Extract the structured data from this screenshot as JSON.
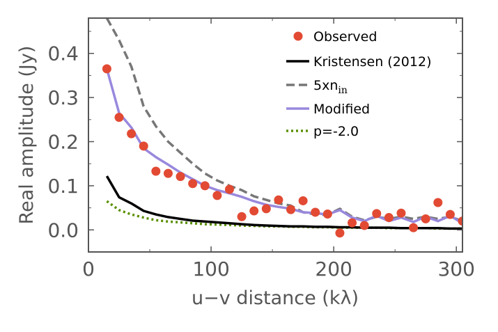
{
  "chart_data": {
    "type": "line",
    "xlabel": "u−v distance (kλ)",
    "ylabel": "Real amplitude (Jy)",
    "xlim": [
      0,
      305
    ],
    "ylim": [
      -0.05,
      0.48
    ],
    "xticks": [
      0,
      100,
      200,
      300
    ],
    "yticks": [
      0.0,
      0.1,
      0.2,
      0.3,
      0.4
    ],
    "xtick_labels": [
      "0",
      "100",
      "200",
      "300"
    ],
    "ytick_labels": [
      "0.0",
      "0.1",
      "0.2",
      "0.3",
      "0.4"
    ],
    "legend_position": "top-right",
    "grid": false,
    "series": [
      {
        "name": "Observed",
        "style": "points",
        "color": "#e24a33",
        "x": [
          15,
          25,
          35,
          45,
          55,
          65,
          75,
          85,
          95,
          105,
          115,
          125,
          135,
          145,
          155,
          165,
          175,
          185,
          195,
          205,
          215,
          225,
          235,
          245,
          255,
          265,
          275,
          285,
          295,
          305
        ],
        "y": [
          0.365,
          0.255,
          0.218,
          0.19,
          0.133,
          0.128,
          0.121,
          0.105,
          0.1,
          0.078,
          0.092,
          0.03,
          0.043,
          0.048,
          0.068,
          0.046,
          0.066,
          0.04,
          0.036,
          -0.007,
          0.016,
          0.01,
          0.037,
          0.028,
          0.038,
          0.005,
          0.025,
          0.062,
          0.035,
          0.02
        ]
      },
      {
        "name": "Kristensen (2012)",
        "style": "solid",
        "color": "#000000",
        "x": [
          15,
          25,
          35,
          45,
          55,
          65,
          75,
          85,
          95,
          105,
          115,
          125,
          135,
          145,
          155,
          165,
          175,
          185,
          195,
          205,
          215,
          225,
          235,
          245,
          255,
          265,
          275,
          285,
          295,
          305
        ],
        "y": [
          0.122,
          0.074,
          0.06,
          0.043,
          0.035,
          0.029,
          0.025,
          0.021,
          0.019,
          0.017,
          0.015,
          0.013,
          0.011,
          0.01,
          0.009,
          0.008,
          0.008,
          0.007,
          0.007,
          0.006,
          0.006,
          0.005,
          0.005,
          0.005,
          0.004,
          0.004,
          0.004,
          0.004,
          0.003,
          0.003
        ]
      },
      {
        "name": "5xn",
        "name_subscript": "in",
        "style": "dashed",
        "color": "#777777",
        "x": [
          15,
          25,
          35,
          45,
          55,
          65,
          75,
          85,
          95,
          105,
          115,
          125,
          135,
          145,
          155,
          165,
          175,
          185,
          195,
          205,
          215,
          225,
          235,
          245,
          255,
          265,
          275,
          285,
          295,
          305
        ],
        "y": [
          0.48,
          0.43,
          0.37,
          0.28,
          0.235,
          0.2,
          0.175,
          0.15,
          0.128,
          0.112,
          0.1,
          0.09,
          0.076,
          0.068,
          0.06,
          0.055,
          0.04,
          0.035,
          0.034,
          0.048,
          0.03,
          0.022,
          0.03,
          0.025,
          0.03,
          0.025,
          0.03,
          0.025,
          0.03,
          0.02
        ]
      },
      {
        "name": "Modified",
        "style": "solid",
        "color": "#9988dd",
        "x": [
          15,
          25,
          35,
          45,
          55,
          65,
          75,
          85,
          95,
          105,
          115,
          125,
          135,
          145,
          155,
          165,
          175,
          185,
          195,
          205,
          215,
          225,
          235,
          245,
          255,
          265,
          275,
          285,
          295,
          305
        ],
        "y": [
          0.365,
          0.265,
          0.232,
          0.185,
          0.165,
          0.148,
          0.13,
          0.115,
          0.1,
          0.09,
          0.083,
          0.075,
          0.065,
          0.057,
          0.052,
          0.048,
          0.04,
          0.038,
          0.035,
          0.045,
          0.028,
          0.02,
          0.032,
          0.02,
          0.028,
          0.018,
          0.03,
          0.02,
          0.032,
          0.015
        ]
      },
      {
        "name": "p=-2.0",
        "style": "dotted",
        "color": "#5a8f00",
        "x": [
          15,
          25,
          35,
          45,
          55,
          65,
          75,
          85,
          95,
          105,
          115,
          125,
          135,
          145,
          155,
          165,
          175,
          185,
          195,
          205,
          215,
          225,
          235,
          245,
          255,
          265,
          275,
          285,
          295,
          305
        ],
        "y": [
          0.065,
          0.045,
          0.035,
          0.028,
          0.022,
          0.019,
          0.017,
          0.015,
          0.013,
          0.012,
          0.011,
          0.01,
          0.009,
          0.008,
          0.008,
          0.007,
          0.007,
          0.006,
          0.006,
          0.005,
          0.005,
          0.005,
          0.005,
          0.004,
          0.004,
          0.004,
          0.004,
          0.003,
          0.003,
          0.003
        ]
      }
    ]
  }
}
